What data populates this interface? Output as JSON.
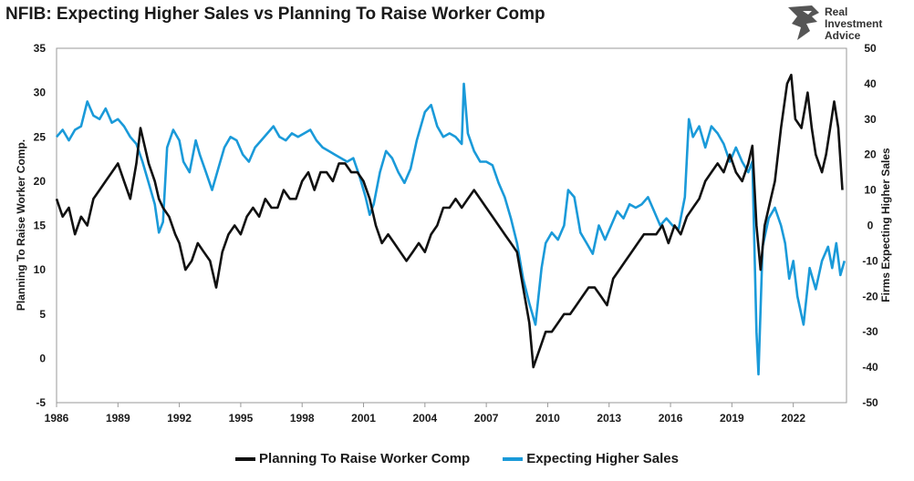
{
  "title": "NFIB: Expecting Higher Sales vs Planning To Raise Worker Comp",
  "logo": {
    "line1": "Real",
    "line2": "Investment",
    "line3": "Advice"
  },
  "colors": {
    "comp": "#111111",
    "sales": "#1a9ad9",
    "axis": "#999999"
  },
  "chart_data": {
    "type": "line",
    "title": "NFIB: Expecting Higher Sales vs Planning To Raise Worker Comp",
    "xlabel": "",
    "ylabel_left": "Planning To Raise Worker Comp.",
    "ylabel_right": "Firms Expecting Higher Sales",
    "x_range": [
      1986,
      2024.6
    ],
    "x_ticks": [
      1986,
      1989,
      1992,
      1995,
      1998,
      2001,
      2004,
      2007,
      2010,
      2013,
      2016,
      2019,
      2022
    ],
    "ylim_left": [
      -5,
      35
    ],
    "yticks_left": [
      -5,
      0,
      5,
      10,
      15,
      20,
      25,
      30,
      35
    ],
    "ylim_right": [
      -50,
      50
    ],
    "yticks_right": [
      -50,
      -40,
      -30,
      -20,
      -10,
      0,
      10,
      20,
      30,
      40,
      50
    ],
    "legend": [
      "Planning To Raise Worker Comp",
      "Expecting Higher Sales"
    ],
    "series": [
      {
        "name": "Planning To Raise Worker Comp",
        "axis": "left",
        "points": [
          [
            1986.0,
            18
          ],
          [
            1986.3,
            16
          ],
          [
            1986.6,
            17
          ],
          [
            1986.9,
            14
          ],
          [
            1987.2,
            16
          ],
          [
            1987.5,
            15
          ],
          [
            1987.8,
            18
          ],
          [
            1988.1,
            19
          ],
          [
            1988.4,
            20
          ],
          [
            1988.7,
            21
          ],
          [
            1989.0,
            22
          ],
          [
            1989.3,
            20
          ],
          [
            1989.6,
            18
          ],
          [
            1989.9,
            22
          ],
          [
            1990.1,
            26
          ],
          [
            1990.3,
            24
          ],
          [
            1990.5,
            22
          ],
          [
            1990.8,
            20
          ],
          [
            1991.0,
            18
          ],
          [
            1991.2,
            17
          ],
          [
            1991.5,
            16
          ],
          [
            1991.8,
            14
          ],
          [
            1992.0,
            13
          ],
          [
            1992.3,
            10
          ],
          [
            1992.6,
            11
          ],
          [
            1992.9,
            13
          ],
          [
            1993.2,
            12
          ],
          [
            1993.5,
            11
          ],
          [
            1993.8,
            8
          ],
          [
            1994.1,
            12
          ],
          [
            1994.4,
            14
          ],
          [
            1994.7,
            15
          ],
          [
            1995.0,
            14
          ],
          [
            1995.3,
            16
          ],
          [
            1995.6,
            17
          ],
          [
            1995.9,
            16
          ],
          [
            1996.2,
            18
          ],
          [
            1996.5,
            17
          ],
          [
            1996.8,
            17
          ],
          [
            1997.1,
            19
          ],
          [
            1997.4,
            18
          ],
          [
            1997.7,
            18
          ],
          [
            1998.0,
            20
          ],
          [
            1998.3,
            21
          ],
          [
            1998.6,
            19
          ],
          [
            1998.9,
            21
          ],
          [
            1999.2,
            21
          ],
          [
            1999.5,
            20
          ],
          [
            1999.8,
            22
          ],
          [
            2000.1,
            22
          ],
          [
            2000.4,
            21
          ],
          [
            2000.7,
            21
          ],
          [
            2001.0,
            20
          ],
          [
            2001.3,
            18
          ],
          [
            2001.6,
            15
          ],
          [
            2001.9,
            13
          ],
          [
            2002.2,
            14
          ],
          [
            2002.5,
            13
          ],
          [
            2002.8,
            12
          ],
          [
            2003.1,
            11
          ],
          [
            2003.4,
            12
          ],
          [
            2003.7,
            13
          ],
          [
            2004.0,
            12
          ],
          [
            2004.3,
            14
          ],
          [
            2004.6,
            15
          ],
          [
            2004.9,
            17
          ],
          [
            2005.2,
            17
          ],
          [
            2005.5,
            18
          ],
          [
            2005.8,
            17
          ],
          [
            2006.1,
            18
          ],
          [
            2006.4,
            19
          ],
          [
            2006.7,
            18
          ],
          [
            2007.0,
            17
          ],
          [
            2007.3,
            16
          ],
          [
            2007.6,
            15
          ],
          [
            2007.9,
            14
          ],
          [
            2008.2,
            13
          ],
          [
            2008.5,
            12
          ],
          [
            2008.8,
            8
          ],
          [
            2009.1,
            4
          ],
          [
            2009.3,
            -1
          ],
          [
            2009.6,
            1
          ],
          [
            2009.9,
            3
          ],
          [
            2010.2,
            3
          ],
          [
            2010.5,
            4
          ],
          [
            2010.8,
            5
          ],
          [
            2011.1,
            5
          ],
          [
            2011.4,
            6
          ],
          [
            2011.7,
            7
          ],
          [
            2012.0,
            8
          ],
          [
            2012.3,
            8
          ],
          [
            2012.6,
            7
          ],
          [
            2012.9,
            6
          ],
          [
            2013.2,
            9
          ],
          [
            2013.5,
            10
          ],
          [
            2013.8,
            11
          ],
          [
            2014.1,
            12
          ],
          [
            2014.4,
            13
          ],
          [
            2014.7,
            14
          ],
          [
            2015.0,
            14
          ],
          [
            2015.3,
            14
          ],
          [
            2015.6,
            15
          ],
          [
            2015.9,
            13
          ],
          [
            2016.2,
            15
          ],
          [
            2016.5,
            14
          ],
          [
            2016.8,
            16
          ],
          [
            2017.1,
            17
          ],
          [
            2017.4,
            18
          ],
          [
            2017.7,
            20
          ],
          [
            2018.0,
            21
          ],
          [
            2018.3,
            22
          ],
          [
            2018.6,
            21
          ],
          [
            2018.9,
            23
          ],
          [
            2019.2,
            21
          ],
          [
            2019.5,
            20
          ],
          [
            2019.8,
            22
          ],
          [
            2020.0,
            24
          ],
          [
            2020.2,
            15
          ],
          [
            2020.4,
            10
          ],
          [
            2020.6,
            15
          ],
          [
            2020.9,
            18
          ],
          [
            2021.1,
            20
          ],
          [
            2021.4,
            26
          ],
          [
            2021.7,
            31
          ],
          [
            2021.9,
            32
          ],
          [
            2022.1,
            27
          ],
          [
            2022.4,
            26
          ],
          [
            2022.7,
            30
          ],
          [
            2022.9,
            26
          ],
          [
            2023.1,
            23
          ],
          [
            2023.4,
            21
          ],
          [
            2023.6,
            23
          ],
          [
            2023.8,
            26
          ],
          [
            2024.0,
            29
          ],
          [
            2024.2,
            26
          ],
          [
            2024.4,
            19
          ]
        ]
      },
      {
        "name": "Expecting Higher Sales",
        "axis": "right",
        "points": [
          [
            1986.0,
            25
          ],
          [
            1986.3,
            27
          ],
          [
            1986.6,
            24
          ],
          [
            1986.9,
            27
          ],
          [
            1987.2,
            28
          ],
          [
            1987.5,
            35
          ],
          [
            1987.8,
            31
          ],
          [
            1988.1,
            30
          ],
          [
            1988.4,
            33
          ],
          [
            1988.7,
            29
          ],
          [
            1989.0,
            30
          ],
          [
            1989.3,
            28
          ],
          [
            1989.6,
            25
          ],
          [
            1989.9,
            23
          ],
          [
            1990.2,
            18
          ],
          [
            1990.5,
            12
          ],
          [
            1990.8,
            6
          ],
          [
            1991.0,
            -2
          ],
          [
            1991.2,
            1
          ],
          [
            1991.4,
            22
          ],
          [
            1991.7,
            27
          ],
          [
            1992.0,
            24
          ],
          [
            1992.2,
            18
          ],
          [
            1992.5,
            15
          ],
          [
            1992.8,
            24
          ],
          [
            1993.0,
            20
          ],
          [
            1993.3,
            15
          ],
          [
            1993.6,
            10
          ],
          [
            1993.9,
            16
          ],
          [
            1994.2,
            22
          ],
          [
            1994.5,
            25
          ],
          [
            1994.8,
            24
          ],
          [
            1995.1,
            20
          ],
          [
            1995.4,
            18
          ],
          [
            1995.7,
            22
          ],
          [
            1996.0,
            24
          ],
          [
            1996.3,
            26
          ],
          [
            1996.6,
            28
          ],
          [
            1996.9,
            25
          ],
          [
            1997.2,
            24
          ],
          [
            1997.5,
            26
          ],
          [
            1997.8,
            25
          ],
          [
            1998.1,
            26
          ],
          [
            1998.4,
            27
          ],
          [
            1998.7,
            24
          ],
          [
            1999.0,
            22
          ],
          [
            1999.3,
            21
          ],
          [
            1999.6,
            20
          ],
          [
            1999.9,
            19
          ],
          [
            2000.2,
            18
          ],
          [
            2000.5,
            19
          ],
          [
            2000.8,
            14
          ],
          [
            2001.1,
            8
          ],
          [
            2001.3,
            3
          ],
          [
            2001.5,
            6
          ],
          [
            2001.8,
            15
          ],
          [
            2002.1,
            21
          ],
          [
            2002.4,
            19
          ],
          [
            2002.7,
            15
          ],
          [
            2003.0,
            12
          ],
          [
            2003.3,
            16
          ],
          [
            2003.6,
            24
          ],
          [
            2004.0,
            32
          ],
          [
            2004.3,
            34
          ],
          [
            2004.6,
            28
          ],
          [
            2004.9,
            25
          ],
          [
            2005.2,
            26
          ],
          [
            2005.5,
            25
          ],
          [
            2005.8,
            23
          ],
          [
            2005.9,
            40
          ],
          [
            2006.1,
            26
          ],
          [
            2006.4,
            21
          ],
          [
            2006.7,
            18
          ],
          [
            2007.0,
            18
          ],
          [
            2007.3,
            17
          ],
          [
            2007.6,
            12
          ],
          [
            2007.9,
            8
          ],
          [
            2008.2,
            2
          ],
          [
            2008.5,
            -5
          ],
          [
            2008.8,
            -15
          ],
          [
            2009.1,
            -22
          ],
          [
            2009.4,
            -28
          ],
          [
            2009.7,
            -12
          ],
          [
            2009.9,
            -5
          ],
          [
            2010.2,
            -2
          ],
          [
            2010.5,
            -4
          ],
          [
            2010.8,
            0
          ],
          [
            2011.0,
            10
          ],
          [
            2011.3,
            8
          ],
          [
            2011.6,
            -2
          ],
          [
            2011.9,
            -5
          ],
          [
            2012.2,
            -8
          ],
          [
            2012.5,
            0
          ],
          [
            2012.8,
            -4
          ],
          [
            2013.1,
            0
          ],
          [
            2013.4,
            4
          ],
          [
            2013.7,
            2
          ],
          [
            2014.0,
            6
          ],
          [
            2014.3,
            5
          ],
          [
            2014.6,
            6
          ],
          [
            2014.9,
            8
          ],
          [
            2015.2,
            4
          ],
          [
            2015.5,
            0
          ],
          [
            2015.8,
            2
          ],
          [
            2016.1,
            0
          ],
          [
            2016.4,
            -1
          ],
          [
            2016.7,
            8
          ],
          [
            2016.9,
            30
          ],
          [
            2017.1,
            25
          ],
          [
            2017.4,
            28
          ],
          [
            2017.7,
            22
          ],
          [
            2018.0,
            28
          ],
          [
            2018.3,
            26
          ],
          [
            2018.6,
            23
          ],
          [
            2018.9,
            18
          ],
          [
            2019.2,
            22
          ],
          [
            2019.5,
            18
          ],
          [
            2019.8,
            15
          ],
          [
            2020.0,
            18
          ],
          [
            2020.2,
            -30
          ],
          [
            2020.3,
            -42
          ],
          [
            2020.5,
            -6
          ],
          [
            2020.8,
            2
          ],
          [
            2021.1,
            5
          ],
          [
            2021.4,
            0
          ],
          [
            2021.6,
            -5
          ],
          [
            2021.8,
            -15
          ],
          [
            2022.0,
            -10
          ],
          [
            2022.2,
            -20
          ],
          [
            2022.5,
            -28
          ],
          [
            2022.8,
            -12
          ],
          [
            2023.1,
            -18
          ],
          [
            2023.4,
            -10
          ],
          [
            2023.7,
            -6
          ],
          [
            2023.9,
            -12
          ],
          [
            2024.1,
            -5
          ],
          [
            2024.3,
            -14
          ],
          [
            2024.5,
            -10
          ]
        ]
      }
    ]
  }
}
